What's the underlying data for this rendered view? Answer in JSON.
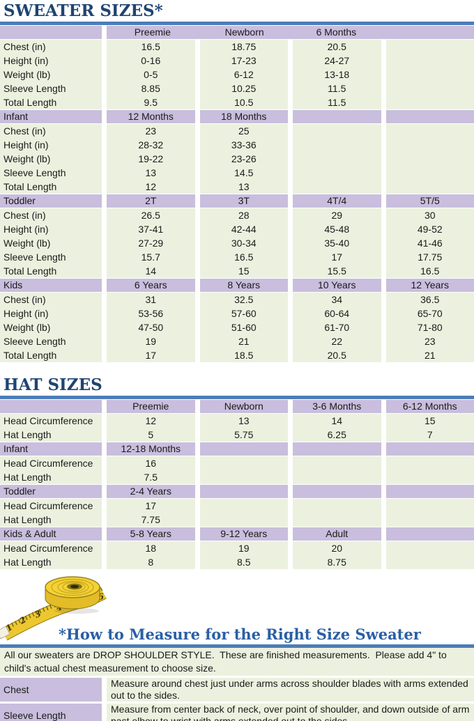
{
  "colors": {
    "lavender": "#C9BEDD",
    "green": "#EBF1DE",
    "rule_blue": "#4C7CB8",
    "title_navy": "#1F4472",
    "heading_blue": "#2A5FA5",
    "tape_yellow": "#EDC72F",
    "text": "#1A1A1A"
  },
  "sweater_table": {
    "title": "SWEATER SIZES*",
    "sections": [
      {
        "label": "",
        "merged_header": true,
        "cols": [
          "Preemie",
          "Newborn",
          "6 Months",
          ""
        ],
        "rows": [
          {
            "label": "Chest (in)",
            "values": [
              "16.5",
              "18.75",
              "20.5",
              ""
            ]
          },
          {
            "label": "Height (in)",
            "values": [
              "0-16",
              "17-23",
              "24-27",
              ""
            ]
          },
          {
            "label": "Weight (lb)",
            "values": [
              "0-5",
              "6-12",
              "13-18",
              ""
            ]
          },
          {
            "label": "Sleeve Length",
            "values": [
              "8.85",
              "10.25",
              "11.5",
              ""
            ]
          },
          {
            "label": "Total Length",
            "values": [
              "9.5",
              "10.5",
              "11.5",
              ""
            ]
          }
        ]
      },
      {
        "label": "Infant",
        "merged_header": false,
        "cols": [
          "12 Months",
          "18 Months",
          "",
          ""
        ],
        "rows": [
          {
            "label": "Chest (in)",
            "values": [
              "23",
              "25",
              "",
              ""
            ]
          },
          {
            "label": "Height (in)",
            "values": [
              "28-32",
              "33-36",
              "",
              ""
            ]
          },
          {
            "label": "Weight (lb)",
            "values": [
              "19-22",
              "23-26",
              "",
              ""
            ]
          },
          {
            "label": "Sleeve Length",
            "values": [
              "13",
              "14.5",
              "",
              ""
            ]
          },
          {
            "label": "Total Length",
            "values": [
              "12",
              "13",
              "",
              ""
            ]
          }
        ]
      },
      {
        "label": "Toddler",
        "merged_header": false,
        "cols": [
          "2T",
          "3T",
          "4T/4",
          "5T/5"
        ],
        "rows": [
          {
            "label": "Chest (in)",
            "values": [
              "26.5",
              "28",
              "29",
              "30"
            ]
          },
          {
            "label": "Height (in)",
            "values": [
              "37-41",
              "42-44",
              "45-48",
              "49-52"
            ]
          },
          {
            "label": "Weight (lb)",
            "values": [
              "27-29",
              "30-34",
              "35-40",
              "41-46"
            ]
          },
          {
            "label": "Sleeve Length",
            "values": [
              "15.7",
              "16.5",
              "17",
              "17.75"
            ]
          },
          {
            "label": "Total Length",
            "values": [
              "14",
              "15",
              "15.5",
              "16.5"
            ]
          }
        ]
      },
      {
        "label": "Kids",
        "merged_header": false,
        "cols": [
          "6 Years",
          "8 Years",
          "10 Years",
          "12 Years"
        ],
        "rows": [
          {
            "label": "Chest (in)",
            "values": [
              "31",
              "32.5",
              "34",
              "36.5"
            ]
          },
          {
            "label": "Height (in)",
            "values": [
              "53-56",
              "57-60",
              "60-64",
              "65-70"
            ]
          },
          {
            "label": "Weight (lb)",
            "values": [
              "47-50",
              "51-60",
              "61-70",
              "71-80"
            ]
          },
          {
            "label": "Sleeve Length",
            "values": [
              "19",
              "21",
              "22",
              "23"
            ]
          },
          {
            "label": "Total Length",
            "values": [
              "17",
              "18.5",
              "20.5",
              "21"
            ]
          }
        ]
      }
    ]
  },
  "hat_table": {
    "title": "HAT SIZES",
    "sections": [
      {
        "label": "",
        "merged_header": false,
        "cols": [
          "Preemie",
          "Newborn",
          "3-6 Months",
          "6-12 Months"
        ],
        "rows": [
          {
            "label": "Head Circumference",
            "values": [
              "12",
              "13",
              "14",
              "15"
            ]
          },
          {
            "label": "Hat Length",
            "values": [
              "5",
              "5.75",
              "6.25",
              "7"
            ]
          }
        ]
      },
      {
        "label": "Infant",
        "merged_header": false,
        "cols": [
          "12-18 Months",
          "",
          "",
          ""
        ],
        "rows": [
          {
            "label": "Head Circumference",
            "values": [
              "16",
              "",
              "",
              ""
            ]
          },
          {
            "label": "Hat Length",
            "values": [
              "7.5",
              "",
              "",
              ""
            ]
          }
        ]
      },
      {
        "label": "Toddler",
        "merged_header": false,
        "cols": [
          "2-4 Years",
          "",
          "",
          ""
        ],
        "rows": [
          {
            "label": "Head Circumference",
            "values": [
              "17",
              "",
              "",
              ""
            ]
          },
          {
            "label": "Hat Length",
            "values": [
              "7.75",
              "",
              "",
              ""
            ]
          }
        ]
      },
      {
        "label": "Kids & Adult",
        "merged_header": false,
        "cols": [
          "5-8 Years",
          "9-12 Years",
          "Adult",
          ""
        ],
        "rows": [
          {
            "label": "Head Circumference",
            "values": [
              "18",
              "19",
              "20",
              ""
            ]
          },
          {
            "label": "Hat Length",
            "values": [
              "8",
              "8.5",
              "8.75",
              ""
            ]
          }
        ]
      }
    ]
  },
  "measure_section": {
    "heading": "*How to Measure for the Right Size Sweater",
    "intro": "All our sweaters are DROP SHOULDER STYLE.  These are finished measurements.  Please add 4\" to child's actual chest measurement to choose size.",
    "rows": [
      {
        "label": "Chest",
        "description": "Measure around chest just under arms across shoulder blades with arms extended out to the sides."
      },
      {
        "label": "Sleeve Length",
        "description": "Measure from center back of neck, over point of shoulder, and down outside of arm past elbow to wrist with arms extended out to the sides."
      }
    ],
    "tape_numbers": [
      "1",
      "2",
      "3",
      "4",
      "5",
      "6"
    ]
  }
}
